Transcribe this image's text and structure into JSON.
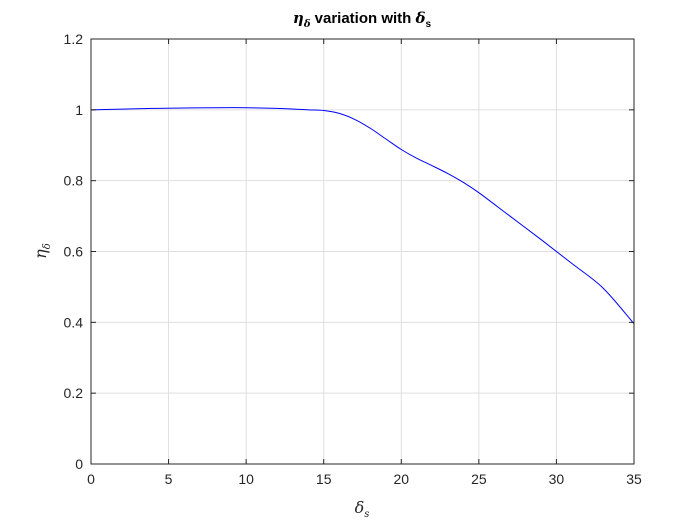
{
  "chart_data": {
    "type": "line",
    "title": {
      "sym": "η",
      "sym_sub": "δ",
      "middle": " variation with ",
      "sym2": "δ",
      "sym2_sub": "s"
    },
    "xlabel": {
      "sym": "δ",
      "sub": "s"
    },
    "ylabel": {
      "sym": "η",
      "sub": "δ"
    },
    "xlim": [
      0,
      35
    ],
    "ylim": [
      0,
      1.2
    ],
    "xticks": [
      0,
      5,
      10,
      15,
      20,
      25,
      30,
      35
    ],
    "yticks": [
      0,
      0.2,
      0.4,
      0.6,
      0.8,
      1,
      1.2
    ],
    "xtick_labels": [
      "0",
      "5",
      "10",
      "15",
      "20",
      "25",
      "30",
      "35"
    ],
    "ytick_labels": [
      "0",
      "0.2",
      "0.4",
      "0.6",
      "0.8",
      "1",
      "1.2"
    ],
    "grid": true,
    "series": [
      {
        "color": "#0000ff",
        "x": [
          0,
          2,
          4,
          6,
          8,
          10,
          12,
          14,
          15,
          16,
          17,
          18,
          19,
          20,
          21,
          22,
          23,
          24,
          25,
          27,
          29,
          31,
          33,
          35
        ],
        "y": [
          1.0,
          1.002,
          1.004,
          1.005,
          1.006,
          1.006,
          1.004,
          1.0,
          0.998,
          0.99,
          0.973,
          0.948,
          0.918,
          0.888,
          0.863,
          0.842,
          0.82,
          0.795,
          0.766,
          0.7,
          0.634,
          0.566,
          0.497,
          0.396
        ]
      }
    ]
  }
}
